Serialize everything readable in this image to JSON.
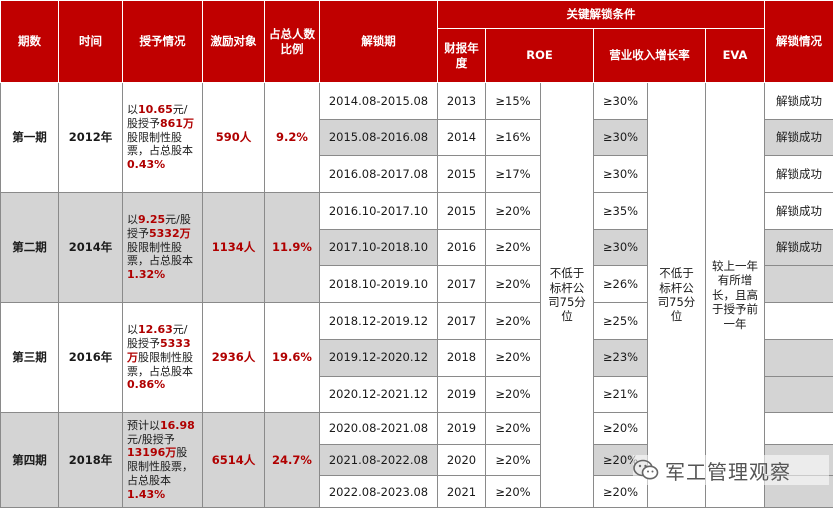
{
  "headers": {
    "period": "期数",
    "time": "时间",
    "grant": "授予情况",
    "targets": "激励对象",
    "ratio": "占总人数比例",
    "unlock_period": "解锁期",
    "conditions": "关键解锁条件",
    "fiscal_year": "财报年度",
    "roe": "ROE",
    "revenue_growth": "营业收入增长率",
    "eva": "EVA",
    "unlock_status": "解锁情况"
  },
  "phases": [
    {
      "name": "第一期",
      "time": "2012年",
      "targets": "590人",
      "ratio": "9.2%",
      "grant": [
        [
          "t",
          "以"
        ],
        [
          "h",
          "10.65"
        ],
        [
          "t",
          "元/股授予"
        ],
        [
          "h",
          "861万"
        ],
        [
          "t",
          "股限制性股票，占总股本"
        ],
        [
          "h",
          "0.43%"
        ]
      ],
      "rows": [
        {
          "period": "2014.08-2015.08",
          "year": "2013",
          "roe": "≥15%",
          "rev": "≥30%",
          "status": "解锁成功"
        },
        {
          "period": "2015.08-2016.08",
          "year": "2014",
          "roe": "≥16%",
          "rev": "≥30%",
          "status": "解锁成功"
        },
        {
          "period": "2016.08-2017.08",
          "year": "2015",
          "roe": "≥17%",
          "rev": "≥30%",
          "status": "解锁成功"
        }
      ]
    },
    {
      "name": "第二期",
      "time": "2014年",
      "targets": "1134人",
      "ratio": "11.9%",
      "grant": [
        [
          "t",
          "以"
        ],
        [
          "h",
          "9.25"
        ],
        [
          "t",
          "元/股授予"
        ],
        [
          "h",
          "5332万"
        ],
        [
          "t",
          "股限制性股票，占总股本"
        ],
        [
          "h",
          "1.32%"
        ]
      ],
      "rows": [
        {
          "period": "2016.10-2017.10",
          "year": "2015",
          "roe": "≥20%",
          "rev": "≥35%",
          "status": "解锁成功"
        },
        {
          "period": "2017.10-2018.10",
          "year": "2016",
          "roe": "≥20%",
          "rev": "≥30%",
          "status": "解锁成功"
        },
        {
          "period": "2018.10-2019.10",
          "year": "2017",
          "roe": "≥20%",
          "rev": "≥26%",
          "status": ""
        }
      ]
    },
    {
      "name": "第三期",
      "time": "2016年",
      "targets": "2936人",
      "ratio": "19.6%",
      "grant": [
        [
          "t",
          "以"
        ],
        [
          "h",
          "12.63"
        ],
        [
          "t",
          "元/股授予"
        ],
        [
          "h",
          "5333万"
        ],
        [
          "t",
          "股限制性股票，占总股本"
        ],
        [
          "h",
          "0.86%"
        ]
      ],
      "rows": [
        {
          "period": "2018.12-2019.12",
          "year": "2017",
          "roe": "≥20%",
          "rev": "≥25%",
          "status": ""
        },
        {
          "period": "2019.12-2020.12",
          "year": "2018",
          "roe": "≥20%",
          "rev": "≥23%",
          "status": ""
        },
        {
          "period": "2020.12-2021.12",
          "year": "2019",
          "roe": "≥20%",
          "rev": "≥21%",
          "status": ""
        }
      ]
    },
    {
      "name": "第四期",
      "time": "2018年",
      "targets": "6514人",
      "ratio": "24.7%",
      "grant": [
        [
          "t",
          "预计以"
        ],
        [
          "h",
          "16.98"
        ],
        [
          "t",
          "元/股授予"
        ],
        [
          "h",
          "13196万"
        ],
        [
          "t",
          "股限制性股票，占总股本"
        ],
        [
          "h",
          "1.43%"
        ]
      ],
      "rows": [
        {
          "period": "2020.08-2021.08",
          "year": "2019",
          "roe": "≥20%",
          "rev": "≥20%",
          "status": ""
        },
        {
          "period": "2021.08-2022.08",
          "year": "2020",
          "roe": "≥20%",
          "rev": "≥20%",
          "status": ""
        },
        {
          "period": "2022.08-2023.08",
          "year": "2021",
          "roe": "≥20%",
          "rev": "≥20%",
          "status": ""
        }
      ]
    }
  ],
  "merged": {
    "roe_note": "不低于标杆公司75分位",
    "rev_note": "不低于标杆公司75分位",
    "eva_note": "较上一年有所增长，且高于授予前一年"
  },
  "watermark": {
    "text": "军工管理观察",
    "icon": "wechat-icon"
  },
  "colors": {
    "header_bg": "#c00000",
    "highlight": "#b00000",
    "shade": "#d4d4d4"
  }
}
